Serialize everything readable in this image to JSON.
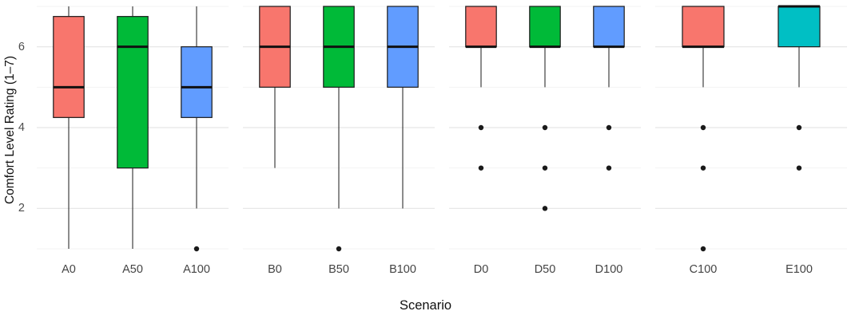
{
  "chart_data": {
    "type": "boxplot",
    "title": "",
    "xlabel": "Scenario",
    "ylabel": "Comfort Level Rating (1–7)",
    "ylim": [
      1,
      7
    ],
    "yticks": [
      2,
      4,
      6
    ],
    "yticks_minor": [
      1,
      3,
      5,
      7
    ],
    "grid": true,
    "legend": "none",
    "box_border_color": "#1a1a1a",
    "outlier_color": "#1a1a1a",
    "groups": [
      {
        "boxes": [
          {
            "label": "A0",
            "color": "#F8766D",
            "whisker_low": 1,
            "q1": 4.25,
            "median": 5,
            "q3": 6.75,
            "whisker_high": 7,
            "outliers": []
          },
          {
            "label": "A50",
            "color": "#00BA38",
            "whisker_low": 1,
            "q1": 3,
            "median": 6,
            "q3": 6.75,
            "whisker_high": 7,
            "outliers": []
          },
          {
            "label": "A100",
            "color": "#619CFF",
            "whisker_low": 2,
            "q1": 4.25,
            "median": 5,
            "q3": 6,
            "whisker_high": 7,
            "outliers": [
              1
            ]
          }
        ]
      },
      {
        "boxes": [
          {
            "label": "B0",
            "color": "#F8766D",
            "whisker_low": 3,
            "q1": 5,
            "median": 6,
            "q3": 7,
            "whisker_high": 7,
            "outliers": []
          },
          {
            "label": "B50",
            "color": "#00BA38",
            "whisker_low": 2,
            "q1": 5,
            "median": 6,
            "q3": 7,
            "whisker_high": 7,
            "outliers": [
              1
            ]
          },
          {
            "label": "B100",
            "color": "#619CFF",
            "whisker_low": 2,
            "q1": 5,
            "median": 6,
            "q3": 7,
            "whisker_high": 7,
            "outliers": []
          }
        ]
      },
      {
        "boxes": [
          {
            "label": "D0",
            "color": "#F8766D",
            "whisker_low": 5,
            "q1": 6,
            "median": 6,
            "q3": 7,
            "whisker_high": 7,
            "outliers": [
              4,
              3
            ]
          },
          {
            "label": "D50",
            "color": "#00BA38",
            "whisker_low": 5,
            "q1": 6,
            "median": 6,
            "q3": 7,
            "whisker_high": 7,
            "outliers": [
              4,
              3,
              2
            ]
          },
          {
            "label": "D100",
            "color": "#619CFF",
            "whisker_low": 5,
            "q1": 6,
            "median": 6,
            "q3": 7,
            "whisker_high": 7,
            "outliers": [
              4,
              3
            ]
          }
        ]
      },
      {
        "boxes": [
          {
            "label": "C100",
            "color": "#F8766D",
            "whisker_low": 5,
            "q1": 6,
            "median": 6,
            "q3": 7,
            "whisker_high": 7,
            "outliers": [
              4,
              3,
              1
            ]
          },
          {
            "label": "E100",
            "color": "#00BFC4",
            "whisker_low": 5,
            "q1": 6,
            "median": 7,
            "q3": 7,
            "whisker_high": 7,
            "outliers": [
              4,
              3
            ]
          }
        ]
      }
    ]
  }
}
